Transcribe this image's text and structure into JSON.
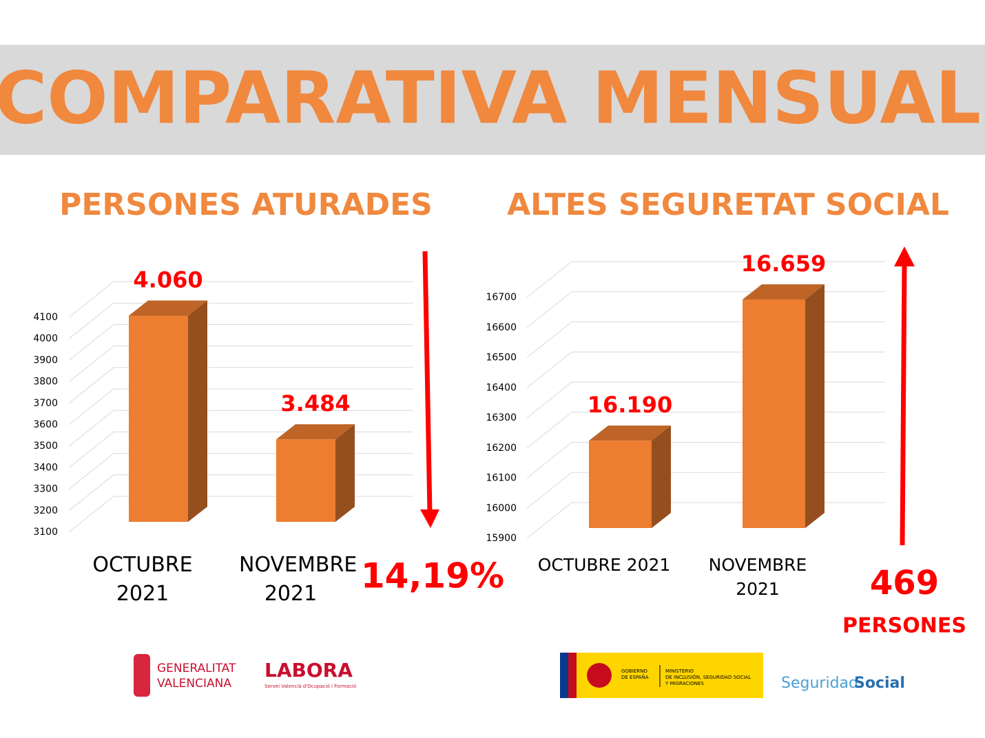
{
  "title": "COMPARATIVA MENSUAL",
  "chart_data": [
    {
      "type": "bar",
      "title": "PERSONES ATURADES",
      "categories": [
        "OCTUBRE 2021",
        "NOVEMBRE 2021"
      ],
      "values": [
        4060,
        3484
      ],
      "value_labels": [
        "4.060",
        "3.484"
      ],
      "color": "#ed7d31",
      "ylim": [
        3100,
        4100
      ],
      "yticks": [
        3100,
        3200,
        3300,
        3400,
        3500,
        3600,
        3700,
        3800,
        3900,
        4000,
        4100
      ],
      "grid": true,
      "annotations": [
        "14,19%"
      ]
    },
    {
      "type": "bar",
      "title": "ALTES SEGURETAT SOCIAL",
      "categories": [
        "OCTUBRE 2021",
        "NOVEMBRE 2021"
      ],
      "values": [
        16190,
        16659
      ],
      "value_labels": [
        "16.190",
        "16.659"
      ],
      "color": "#ed7d31",
      "ylim": [
        15900,
        16700
      ],
      "yticks": [
        15900,
        16000,
        16100,
        16200,
        16300,
        16400,
        16500,
        16600,
        16700
      ],
      "grid": true,
      "annotations": [
        "469",
        "PERSONES"
      ]
    }
  ],
  "logos": {
    "generalitat": [
      "GENERALITAT",
      "VALENCIANA"
    ],
    "labora": "LABORA",
    "labora_sub": "Servei Valencià d'Ocupació i Formació",
    "gobierno": [
      "GOBIERNO",
      "DE ESPAÑA"
    ],
    "ministerio": [
      "MINISTERIO",
      "DE INCLUSIÓN, SEGURIDAD SOCIAL",
      "Y MIGRACIONES"
    ],
    "seguridad": [
      "Seguridad",
      "Social"
    ]
  }
}
